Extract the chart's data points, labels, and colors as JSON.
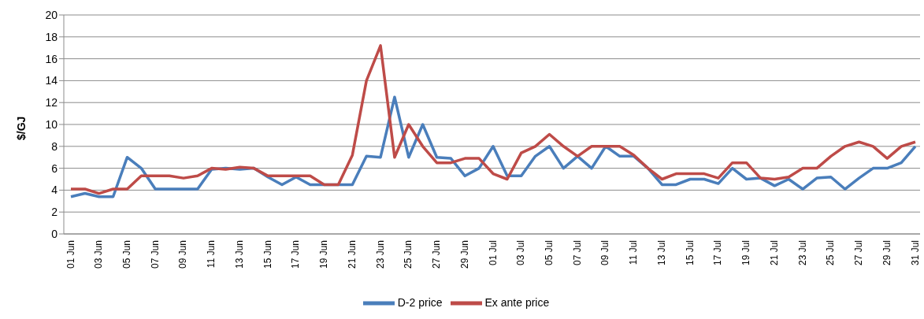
{
  "chart_data": {
    "type": "line",
    "ylabel": "$/GJ",
    "categories": [
      "01 Jun",
      null,
      "03 Jun",
      null,
      "05 Jun",
      null,
      "07 Jun",
      null,
      "09 Jun",
      null,
      "11 Jun",
      null,
      "13 Jun",
      null,
      "15 Jun",
      null,
      "17 Jun",
      null,
      "19 Jun",
      null,
      "21 Jun",
      null,
      "23 Jun",
      null,
      "25 Jun",
      null,
      "27 Jun",
      null,
      "29 Jun",
      null,
      "01 Jul",
      null,
      "03 Jul",
      null,
      "05 Jul",
      null,
      "07 Jul",
      null,
      "09 Jul",
      null,
      "11 Jul",
      null,
      "13 Jul",
      null,
      "15 Jul",
      null,
      "17 Jul",
      null,
      "19 Jul",
      null,
      "21 Jul",
      null,
      "23 Jul",
      null,
      "25 Jul",
      null,
      "27 Jul",
      null,
      "29 Jul",
      null,
      "31 Jul"
    ],
    "series": [
      {
        "name": "D-2 price",
        "color": "#4a7ebb",
        "values": [
          3.4,
          3.7,
          3.4,
          3.4,
          7.0,
          6.0,
          4.1,
          4.1,
          4.1,
          4.1,
          5.9,
          6.0,
          5.9,
          6.0,
          5.2,
          4.5,
          5.2,
          4.5,
          4.5,
          4.5,
          4.5,
          7.1,
          7.0,
          12.5,
          7.0,
          10.0,
          7.0,
          6.9,
          5.3,
          6.0,
          8.0,
          5.3,
          5.3,
          7.1,
          8.0,
          6.0,
          7.1,
          6.0,
          8.0,
          7.1,
          7.1,
          6.0,
          4.5,
          4.5,
          5.0,
          5.0,
          4.6,
          6.0,
          5.0,
          5.1,
          4.4,
          5.0,
          4.1,
          5.1,
          5.2,
          4.1,
          5.1,
          6.0,
          6.0,
          6.5,
          8.0
        ]
      },
      {
        "name": "Ex ante price",
        "color": "#be4b48",
        "values": [
          4.1,
          4.1,
          3.7,
          4.1,
          4.1,
          5.3,
          5.3,
          5.3,
          5.1,
          5.3,
          6.0,
          5.9,
          6.1,
          6.0,
          5.3,
          5.3,
          5.3,
          5.3,
          4.5,
          4.5,
          7.2,
          14.0,
          17.2,
          7.0,
          10.0,
          8.0,
          6.5,
          6.5,
          6.9,
          6.9,
          5.5,
          5.0,
          7.4,
          8.0,
          9.1,
          8.0,
          7.1,
          8.0,
          8.0,
          8.0,
          7.2,
          6.0,
          5.0,
          5.5,
          5.5,
          5.5,
          5.1,
          6.5,
          6.5,
          5.1,
          5.0,
          5.2,
          6.0,
          6.0,
          7.1,
          8.0,
          8.4,
          8.0,
          6.9,
          8.0,
          8.4
        ]
      }
    ],
    "ylim": [
      0,
      20
    ],
    "yticks": [
      0,
      2,
      4,
      6,
      8,
      10,
      12,
      14,
      16,
      18,
      20
    ],
    "grid": "y",
    "legend": "bottom",
    "marker": "none",
    "line_style": "solid"
  }
}
